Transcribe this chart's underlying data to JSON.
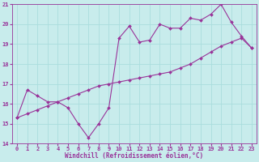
{
  "xlabel": "Windchill (Refroidissement éolien,°C)",
  "ylabel": "",
  "background_color": "#c8ecec",
  "line_color": "#993399",
  "grid_color": "#aadddd",
  "xlim": [
    -0.5,
    23.5
  ],
  "ylim": [
    14,
    21
  ],
  "xticks": [
    0,
    1,
    2,
    3,
    4,
    5,
    6,
    7,
    8,
    9,
    10,
    11,
    12,
    13,
    14,
    15,
    16,
    17,
    18,
    19,
    20,
    21,
    22,
    23
  ],
  "yticks": [
    14,
    15,
    16,
    17,
    18,
    19,
    20,
    21
  ],
  "line1_x": [
    0,
    1,
    2,
    3,
    4,
    5,
    6,
    7,
    8,
    9,
    10,
    11,
    12,
    13,
    14,
    15,
    16,
    17,
    18,
    19,
    20,
    21,
    22,
    23
  ],
  "line1_y": [
    15.3,
    16.7,
    16.4,
    16.1,
    16.1,
    15.8,
    15.0,
    14.3,
    15.0,
    15.8,
    19.3,
    19.9,
    19.1,
    19.2,
    20.0,
    19.8,
    19.8,
    20.3,
    20.2,
    20.5,
    21.0,
    20.1,
    19.4,
    18.8
  ],
  "line2_x": [
    0,
    1,
    2,
    3,
    4,
    5,
    6,
    7,
    8,
    9,
    10,
    11,
    12,
    13,
    14,
    15,
    16,
    17,
    18,
    19,
    20,
    21,
    22,
    23
  ],
  "line2_y": [
    15.3,
    15.5,
    15.7,
    15.9,
    16.1,
    16.3,
    16.5,
    16.7,
    16.9,
    17.0,
    17.1,
    17.2,
    17.3,
    17.4,
    17.5,
    17.6,
    17.8,
    18.0,
    18.3,
    18.6,
    18.9,
    19.1,
    19.3,
    18.8
  ],
  "xlabel_fontsize": 5.5,
  "tick_fontsize": 5.0
}
